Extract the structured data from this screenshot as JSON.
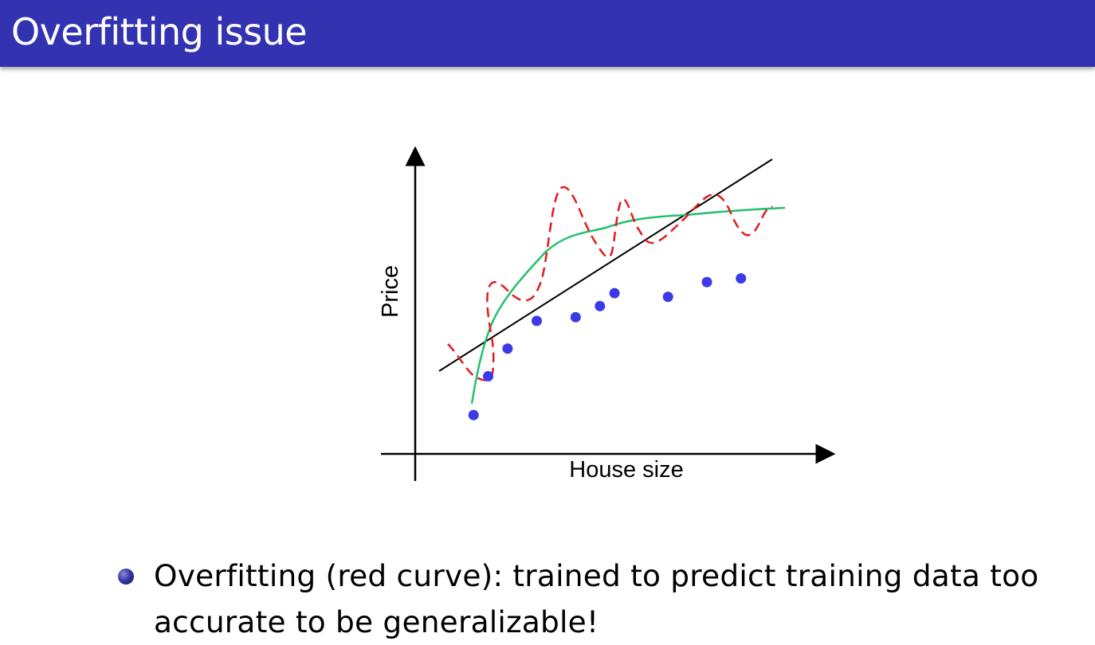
{
  "slide": {
    "title": "Overfitting issue"
  },
  "chart_data": {
    "type": "scatter",
    "xlabel": "House size",
    "ylabel": "Price",
    "points": [
      [
        1.2,
        2.1
      ],
      [
        1.5,
        4.2
      ],
      [
        1.9,
        5.7
      ],
      [
        2.5,
        7.2
      ],
      [
        3.3,
        7.4
      ],
      [
        3.8,
        8.0
      ],
      [
        4.1,
        8.7
      ],
      [
        5.2,
        8.5
      ],
      [
        6.0,
        9.3
      ],
      [
        6.7,
        9.5
      ]
    ],
    "legend": ""
  },
  "colors": {
    "title_bar": "#3333b2",
    "data_points": "#3a3ae6",
    "overfit_curve": "#e21b1b",
    "good_fit_curve": "#22c06e",
    "underfit_line": "#000000"
  },
  "bullets": [
    {
      "text": "Overfitting (red curve): trained to predict training data too accurate to be generalizable!"
    }
  ]
}
